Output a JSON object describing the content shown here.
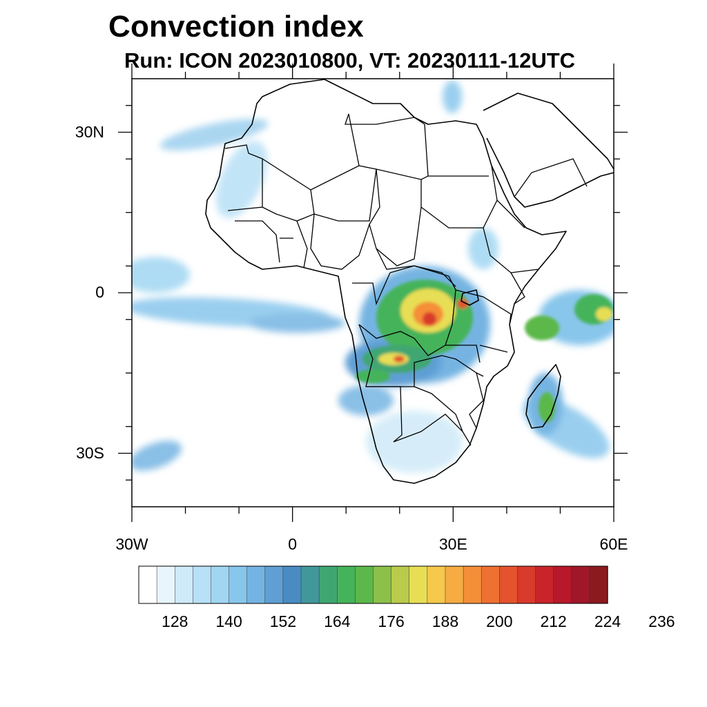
{
  "title": "Convection index",
  "subtitle": "Run: ICON 2023010800,  VT: 20230111-12UTC",
  "map": {
    "lon_range": [
      -30,
      60
    ],
    "lat_range": [
      -40,
      40
    ],
    "lat_ticks": [
      {
        "value": 30,
        "label": "30N"
      },
      {
        "value": 0,
        "label": "0"
      },
      {
        "value": -30,
        "label": "30S"
      }
    ],
    "lon_ticks": [
      {
        "value": -30,
        "label": "30W"
      },
      {
        "value": 0,
        "label": "0"
      },
      {
        "value": 30,
        "label": "30E"
      },
      {
        "value": 60,
        "label": "60E"
      }
    ]
  },
  "colorbar": {
    "colors": [
      "#ffffff",
      "#e8f5fc",
      "#cfeaf8",
      "#b8e0f6",
      "#a0d6f2",
      "#88c6ec",
      "#74b4e2",
      "#5f9fd4",
      "#4a8cc2",
      "#41989a",
      "#3fa672",
      "#45b35a",
      "#5cb84a",
      "#8cc04a",
      "#b9cb4b",
      "#e8de55",
      "#f6c84c",
      "#f6ab43",
      "#f48f38",
      "#ee7132",
      "#e4532d",
      "#d83a2c",
      "#c9242a",
      "#b7182a",
      "#a0172a",
      "#8b1a1f"
    ],
    "labels": [
      "128",
      "140",
      "152",
      "164",
      "176",
      "188",
      "200",
      "212",
      "224",
      "236"
    ]
  }
}
